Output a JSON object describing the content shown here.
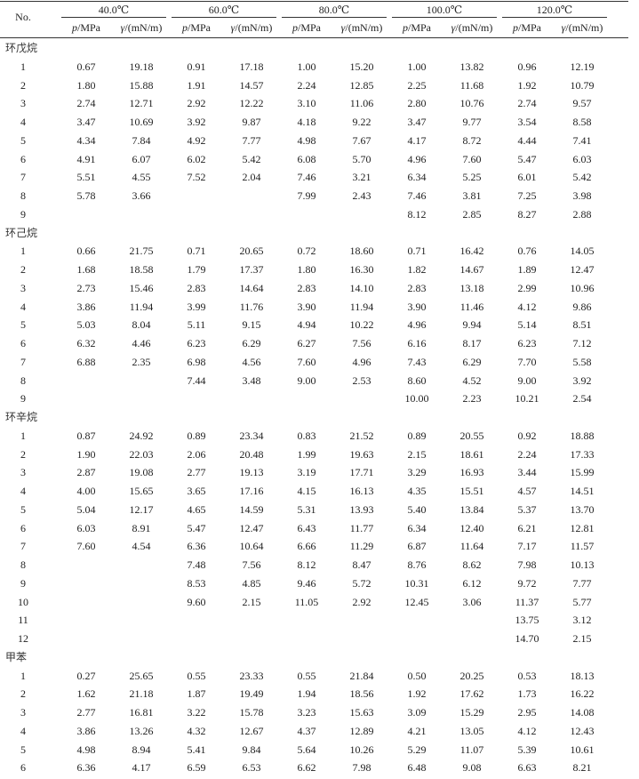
{
  "header": {
    "no_label": "No.",
    "temperatures": [
      "40.0℃",
      "60.0℃",
      "80.0℃",
      "100.0℃",
      "120.0℃"
    ],
    "p_var": "p",
    "p_unit": "/MPa",
    "gamma_var": "γ",
    "gamma_unit": "/(mN/m)"
  },
  "groups": [
    {
      "name": "环戊烷",
      "rows": [
        [
          "1",
          "0.67",
          "19.18",
          "0.91",
          "17.18",
          "1.00",
          "15.20",
          "1.00",
          "13.82",
          "0.96",
          "12.19"
        ],
        [
          "2",
          "1.80",
          "15.88",
          "1.91",
          "14.57",
          "2.24",
          "12.85",
          "2.25",
          "11.68",
          "1.92",
          "10.79"
        ],
        [
          "3",
          "2.74",
          "12.71",
          "2.92",
          "12.22",
          "3.10",
          "11.06",
          "2.80",
          "10.76",
          "2.74",
          "9.57"
        ],
        [
          "4",
          "3.47",
          "10.69",
          "3.92",
          "9.87",
          "4.18",
          "9.22",
          "3.47",
          "9.77",
          "3.54",
          "8.58"
        ],
        [
          "5",
          "4.34",
          "7.84",
          "4.92",
          "7.77",
          "4.98",
          "7.67",
          "4.17",
          "8.72",
          "4.44",
          "7.41"
        ],
        [
          "6",
          "4.91",
          "6.07",
          "6.02",
          "5.42",
          "6.08",
          "5.70",
          "4.96",
          "7.60",
          "5.47",
          "6.03"
        ],
        [
          "7",
          "5.51",
          "4.55",
          "7.52",
          "2.04",
          "7.46",
          "3.21",
          "6.34",
          "5.25",
          "6.01",
          "5.42"
        ],
        [
          "8",
          "5.78",
          "3.66",
          "",
          "",
          "7.99",
          "2.43",
          "7.46",
          "3.81",
          "7.25",
          "3.98"
        ],
        [
          "9",
          "",
          "",
          "",
          "",
          "",
          "",
          "8.12",
          "2.85",
          "8.27",
          "2.88"
        ]
      ]
    },
    {
      "name": "环己烷",
      "rows": [
        [
          "1",
          "0.66",
          "21.75",
          "0.71",
          "20.65",
          "0.72",
          "18.60",
          "0.71",
          "16.42",
          "0.76",
          "14.05"
        ],
        [
          "2",
          "1.68",
          "18.58",
          "1.79",
          "17.37",
          "1.80",
          "16.30",
          "1.82",
          "14.67",
          "1.89",
          "12.47"
        ],
        [
          "3",
          "2.73",
          "15.46",
          "2.83",
          "14.64",
          "2.83",
          "14.10",
          "2.83",
          "13.18",
          "2.99",
          "10.96"
        ],
        [
          "4",
          "3.86",
          "11.94",
          "3.99",
          "11.76",
          "3.90",
          "11.94",
          "3.90",
          "11.46",
          "4.12",
          "9.86"
        ],
        [
          "5",
          "5.03",
          "8.04",
          "5.11",
          "9.15",
          "4.94",
          "10.22",
          "4.96",
          "9.94",
          "5.14",
          "8.51"
        ],
        [
          "6",
          "6.32",
          "4.46",
          "6.23",
          "6.29",
          "6.27",
          "7.56",
          "6.16",
          "8.17",
          "6.23",
          "7.12"
        ],
        [
          "7",
          "6.88",
          "2.35",
          "6.98",
          "4.56",
          "7.60",
          "4.96",
          "7.43",
          "6.29",
          "7.70",
          "5.58"
        ],
        [
          "8",
          "",
          "",
          "7.44",
          "3.48",
          "9.00",
          "2.53",
          "8.60",
          "4.52",
          "9.00",
          "3.92"
        ],
        [
          "9",
          "",
          "",
          "",
          "",
          "",
          "",
          "10.00",
          "2.23",
          "10.21",
          "2.54"
        ]
      ]
    },
    {
      "name": "环辛烷",
      "rows": [
        [
          "1",
          "0.87",
          "24.92",
          "0.89",
          "23.34",
          "0.83",
          "21.52",
          "0.89",
          "20.55",
          "0.92",
          "18.88"
        ],
        [
          "2",
          "1.90",
          "22.03",
          "2.06",
          "20.48",
          "1.99",
          "19.63",
          "2.15",
          "18.61",
          "2.24",
          "17.33"
        ],
        [
          "3",
          "2.87",
          "19.08",
          "2.77",
          "19.13",
          "3.19",
          "17.71",
          "3.29",
          "16.93",
          "3.44",
          "15.99"
        ],
        [
          "4",
          "4.00",
          "15.65",
          "3.65",
          "17.16",
          "4.15",
          "16.13",
          "4.35",
          "15.51",
          "4.57",
          "14.51"
        ],
        [
          "5",
          "5.04",
          "12.17",
          "4.65",
          "14.59",
          "5.31",
          "13.93",
          "5.40",
          "13.84",
          "5.37",
          "13.70"
        ],
        [
          "6",
          "6.03",
          "8.91",
          "5.47",
          "12.47",
          "6.43",
          "11.77",
          "6.34",
          "12.40",
          "6.21",
          "12.81"
        ],
        [
          "7",
          "7.60",
          "4.54",
          "6.36",
          "10.64",
          "6.66",
          "11.29",
          "6.87",
          "11.64",
          "7.17",
          "11.57"
        ],
        [
          "8",
          "",
          "",
          "7.48",
          "7.56",
          "8.12",
          "8.47",
          "8.76",
          "8.62",
          "7.98",
          "10.13"
        ],
        [
          "9",
          "",
          "",
          "8.53",
          "4.85",
          "9.46",
          "5.72",
          "10.31",
          "6.12",
          "9.72",
          "7.77"
        ],
        [
          "10",
          "",
          "",
          "9.60",
          "2.15",
          "11.05",
          "2.92",
          "12.45",
          "3.06",
          "11.37",
          "5.77"
        ],
        [
          "11",
          "",
          "",
          "",
          "",
          "",
          "",
          "",
          "",
          "13.75",
          "3.12"
        ],
        [
          "12",
          "",
          "",
          "",
          "",
          "",
          "",
          "",
          "",
          "14.70",
          "2.15"
        ]
      ]
    },
    {
      "name": "甲苯",
      "rows": [
        [
          "1",
          "0.27",
          "25.65",
          "0.55",
          "23.33",
          "0.55",
          "21.84",
          "0.50",
          "20.25",
          "0.53",
          "18.13"
        ],
        [
          "2",
          "1.62",
          "21.18",
          "1.87",
          "19.49",
          "1.94",
          "18.56",
          "1.92",
          "17.62",
          "1.73",
          "16.22"
        ],
        [
          "3",
          "2.77",
          "16.81",
          "3.22",
          "15.78",
          "3.23",
          "15.63",
          "3.09",
          "15.29",
          "2.95",
          "14.08"
        ],
        [
          "4",
          "3.86",
          "13.26",
          "4.32",
          "12.67",
          "4.37",
          "12.89",
          "4.21",
          "13.05",
          "4.12",
          "12.43"
        ],
        [
          "5",
          "4.98",
          "8.94",
          "5.41",
          "9.84",
          "5.64",
          "10.26",
          "5.29",
          "11.07",
          "5.39",
          "10.61"
        ],
        [
          "6",
          "6.36",
          "4.17",
          "6.59",
          "6.53",
          "6.62",
          "7.98",
          "6.48",
          "9.08",
          "6.63",
          "8.21"
        ]
      ]
    }
  ]
}
